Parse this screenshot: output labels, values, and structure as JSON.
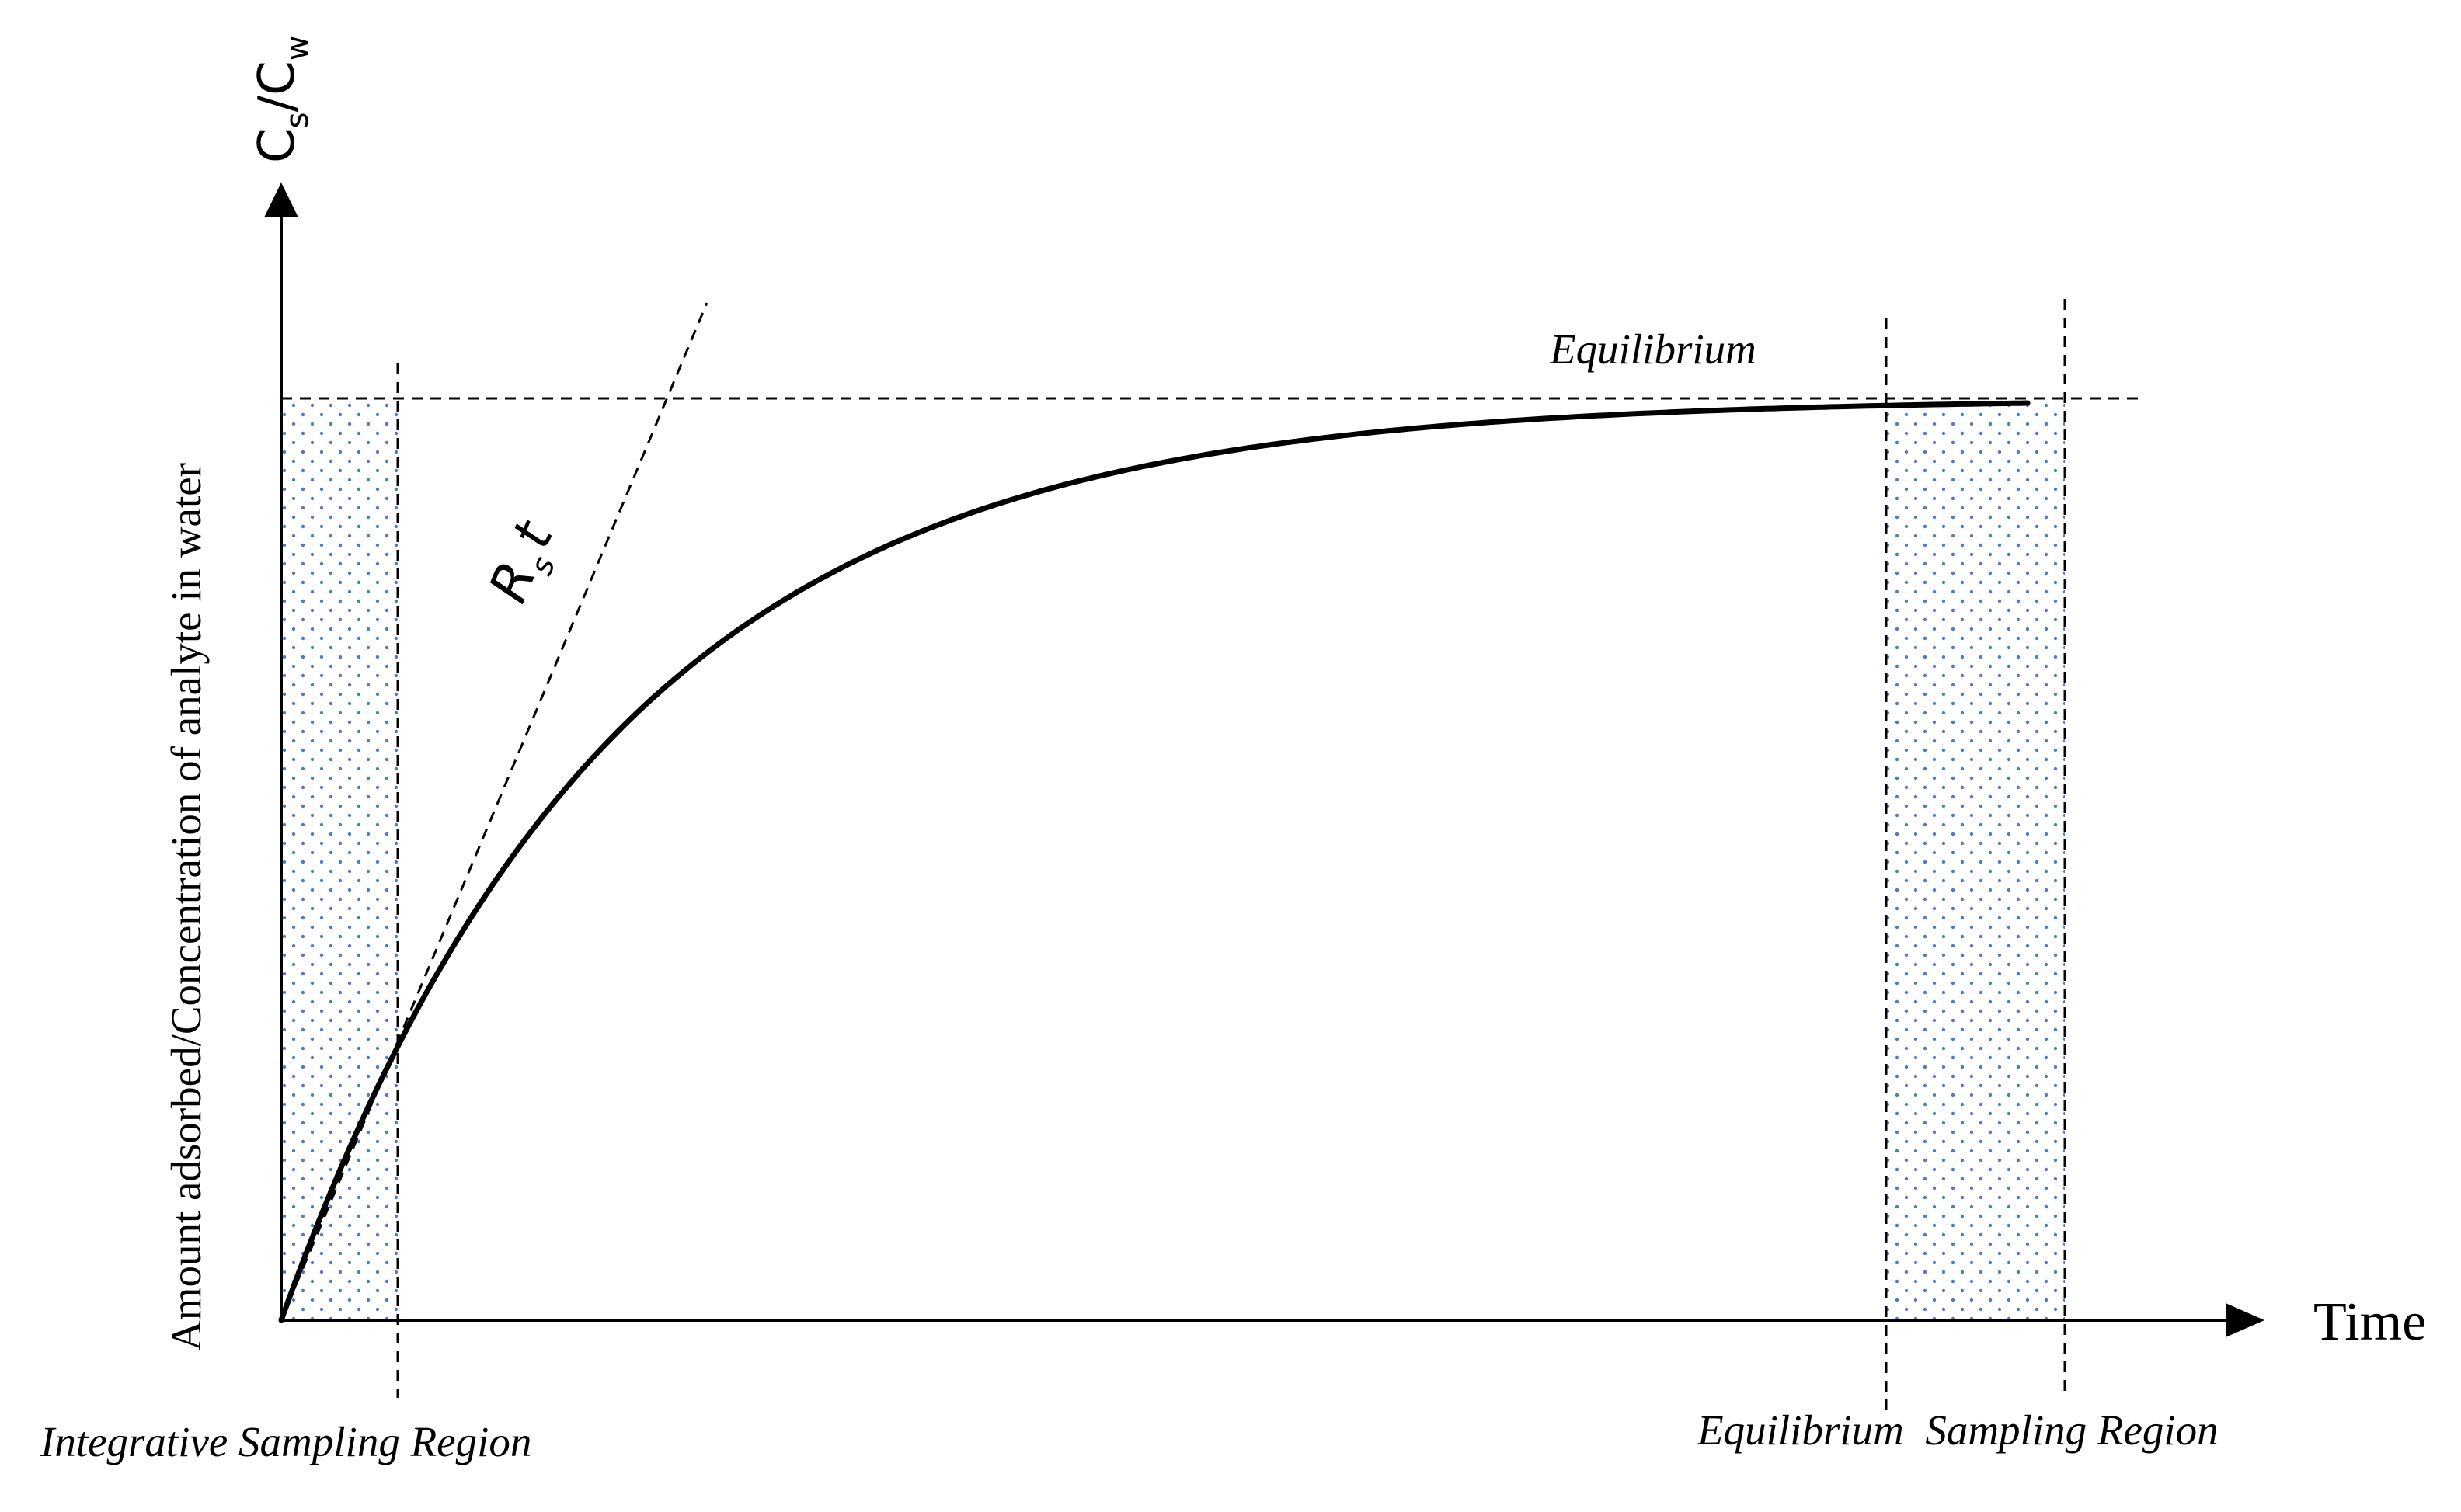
{
  "diagram": {
    "y_axis_ratio": {
      "main_c": "C",
      "sub_s": "s",
      "slash_c": "/C",
      "sub_w": "w"
    },
    "y_axis_label": "Amount adsorbed/Concentration of analyte in water",
    "x_axis_label": "Time",
    "equilibrium_label": "Equilibrium",
    "rate_label": {
      "main": "R",
      "sub": "s",
      "suffix": "t"
    },
    "integrative_region_label": "Integrative Sampling Region",
    "equilibrium_region_label": "Equilibrium  Sampling Region",
    "colors": {
      "dot_fill": "#4a7bd0",
      "line": "#000000"
    }
  }
}
